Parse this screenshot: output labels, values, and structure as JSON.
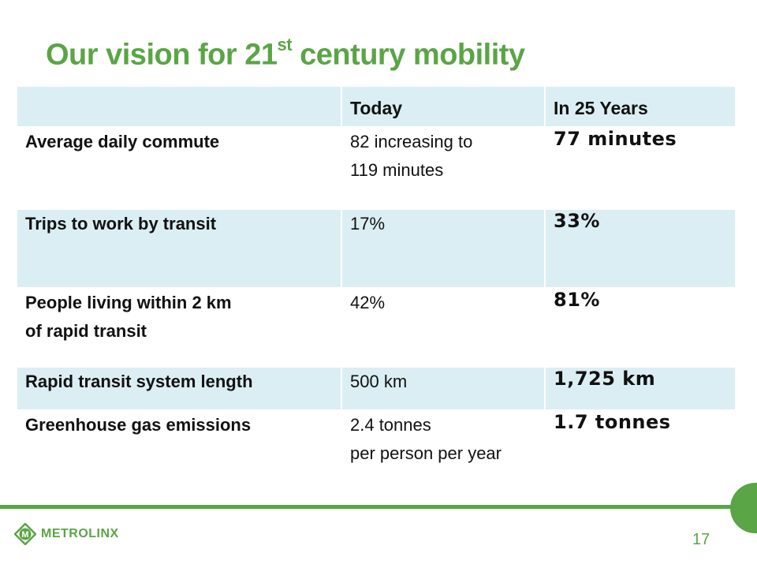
{
  "slide": {
    "title_main": "Our vision for 21",
    "title_sup": "st",
    "title_rest": " century mobility"
  },
  "table": {
    "headers": [
      "",
      "Today",
      "In 25 Years"
    ],
    "rows": [
      {
        "label": [
          "Average daily commute"
        ],
        "today": [
          "82  increasing to",
          "119 minutes"
        ],
        "future": "77 minutes"
      },
      {
        "label": [
          "Trips to work by transit"
        ],
        "today": [
          "17%"
        ],
        "future": "33%"
      },
      {
        "label": [
          "People living within 2 km",
          "of rapid transit"
        ],
        "today": [
          "42%"
        ],
        "future": "81%"
      },
      {
        "label": [
          "Rapid transit system length"
        ],
        "today": [
          "500 km"
        ],
        "future": "1,725 km"
      },
      {
        "label": [
          "Greenhouse gas emissions"
        ],
        "today": [
          "2.4 tonnes",
          "per person per year"
        ],
        "future": "1.7 tonnes"
      }
    ]
  },
  "footer": {
    "logo_text": "METROLINX",
    "logo_mark_letter": "M",
    "page_number": "17",
    "accent_color": "#5aa545",
    "shade_color": "#dbeef3"
  }
}
